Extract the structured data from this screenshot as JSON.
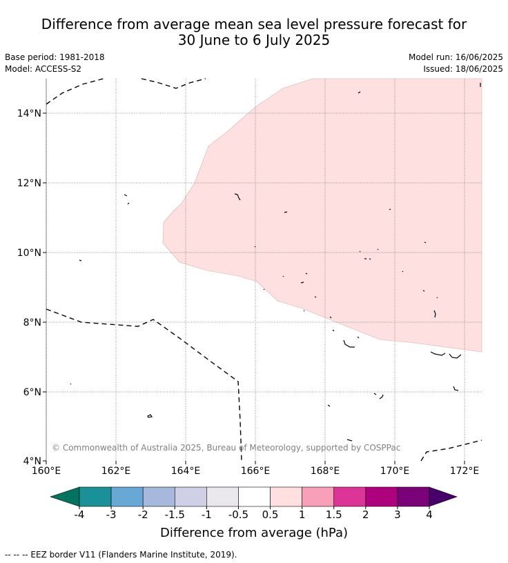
{
  "title": {
    "line1": "Difference from average mean sea level pressure forecast for",
    "line2": "30 June to 6 July 2025"
  },
  "meta": {
    "base_period": "Base period: 1981-2018",
    "model": "Model: ACCESS-S2",
    "model_run": "Model run: 16/06/2025",
    "issued": "Issued: 18/06/2025"
  },
  "map": {
    "lon_labels": [
      "160°E",
      "162°E",
      "164°E",
      "166°E",
      "168°E",
      "170°E",
      "172°E"
    ],
    "lat_labels": [
      "14°N",
      "12°N",
      "10°N",
      "8°N",
      "6°N",
      "4°N"
    ],
    "copyright": "© Commonwealth of Australia 2025, Bureau of Meteorology, supported by COSPPac",
    "anomaly_fill_color": "#fde0df"
  },
  "colorbar": {
    "ticks": [
      "-4",
      "-3",
      "-2",
      "-1.5",
      "-1",
      "-0.5",
      "0.5",
      "1",
      "1.5",
      "2",
      "3",
      "4"
    ],
    "colors": [
      "#1a9196",
      "#67a9d4",
      "#a6b8db",
      "#cfcfe6",
      "#ebe8ed",
      "#ffffff",
      "#fde0df",
      "#f99fb9",
      "#dd3497",
      "#ae017e",
      "#7a0177"
    ],
    "under_color": "#01735f",
    "over_color": "#49006a",
    "label": "Difference from average (hPa)"
  },
  "footnote": "--  --  -- EEZ border V11 (Flanders Marine Institute, 2019)."
}
